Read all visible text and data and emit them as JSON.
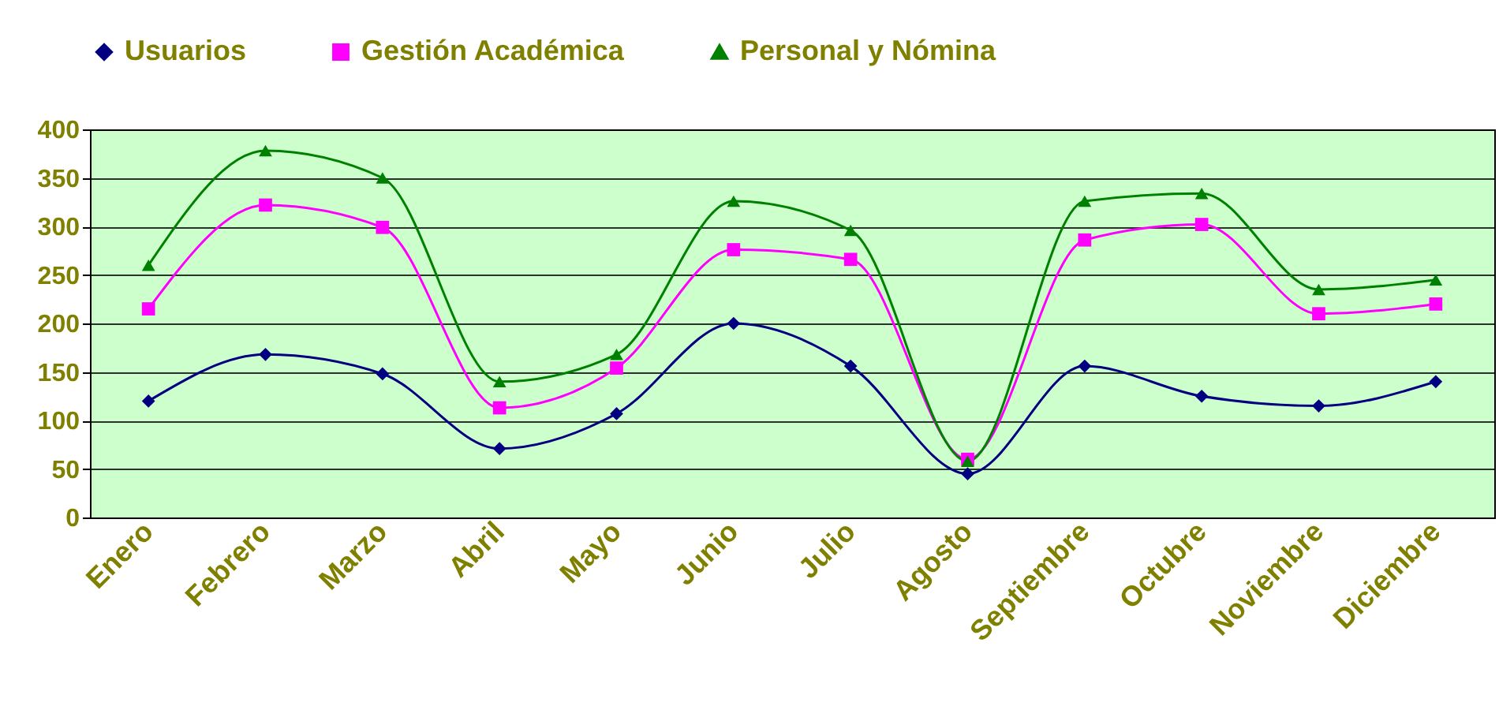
{
  "chart_data": {
    "type": "line",
    "categories": [
      "Enero",
      "Febrero",
      "Marzo",
      "Abril",
      "Mayo",
      "Junio",
      "Julio",
      "Agosto",
      "Septiembre",
      "Octubre",
      "Noviembre",
      "Diciembre"
    ],
    "series": [
      {
        "name": "Usuarios",
        "color": "#000080",
        "marker": "diamond",
        "values": [
          120,
          168,
          148,
          71,
          107,
          200,
          156,
          45,
          156,
          125,
          115,
          140
        ]
      },
      {
        "name": "Gestión Académica",
        "color": "#ff00ff",
        "marker": "square",
        "values": [
          215,
          322,
          299,
          113,
          154,
          276,
          266,
          60,
          286,
          302,
          210,
          220
        ]
      },
      {
        "name": "Personal y Nómina",
        "color": "#008000",
        "marker": "triangle",
        "values": [
          260,
          378,
          350,
          140,
          168,
          326,
          296,
          58,
          326,
          334,
          235,
          245
        ]
      }
    ],
    "ylim": [
      0,
      400
    ],
    "yticks": [
      0,
      50,
      100,
      150,
      200,
      250,
      300,
      350,
      400
    ],
    "grid": "y",
    "legend": "top",
    "line_style": "solid"
  }
}
